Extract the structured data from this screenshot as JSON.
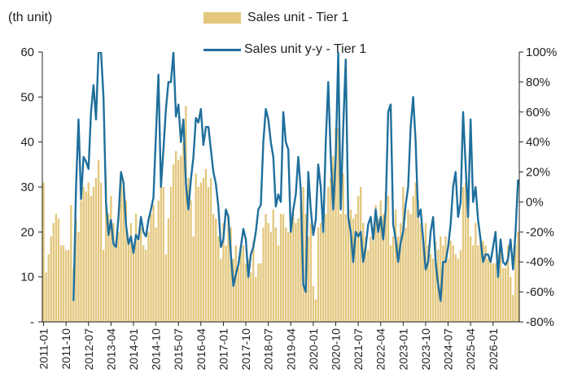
{
  "colors": {
    "bar": "#e3c77d",
    "line": "#1f6f9c",
    "axis": "#222222"
  },
  "chart_data": {
    "type": "bar+line",
    "left_axis_unit": "(th unit)",
    "y_left": {
      "min": 0,
      "max": 60,
      "ticks": [
        0,
        10,
        20,
        30,
        40,
        50,
        60
      ],
      "tick_labels": [
        "-",
        "10",
        "20",
        "30",
        "40",
        "50",
        "60"
      ]
    },
    "y_right": {
      "min": -80,
      "max": 100,
      "ticks": [
        -80,
        -60,
        -40,
        -20,
        0,
        20,
        40,
        60,
        80,
        100
      ],
      "tick_labels": [
        "-80%",
        "-60%",
        "-40%",
        "-20%",
        "0%",
        "20%",
        "40%",
        "60%",
        "80%",
        "100%"
      ]
    },
    "x_tick_labels": [
      "2011-01",
      "2011-10",
      "2012-07",
      "2013-04",
      "2014-01",
      "2014-10",
      "2015-07",
      "2016-04",
      "2017-01",
      "2017-10",
      "2018-07",
      "2019-04",
      "2020-01",
      "2020-10",
      "2021-07",
      "2022-04",
      "2023-01",
      "2023-10",
      "2024-07",
      "2025-04",
      "2026-01"
    ],
    "x_start": "2011-01",
    "grid": false,
    "legend_position": "top-center",
    "series": [
      {
        "name": "Sales unit - Tier 1",
        "type": "bar",
        "axis": "left",
        "values": [
          31,
          11,
          15,
          19,
          22,
          24,
          23,
          17,
          17,
          16,
          16,
          26,
          12,
          23,
          20,
          27,
          30,
          29,
          31,
          28,
          30,
          32,
          36,
          31,
          16,
          32,
          24,
          28,
          22,
          18,
          20,
          33,
          30,
          27,
          18,
          22,
          16,
          24,
          18,
          21,
          17,
          16,
          20,
          24,
          26,
          21,
          27,
          31,
          30,
          15,
          23,
          30,
          35,
          38,
          36,
          37,
          40,
          48,
          32,
          27,
          19,
          33,
          30,
          31,
          32,
          34,
          30,
          32,
          24,
          23,
          19,
          14,
          22,
          17,
          24,
          21,
          14,
          17,
          12,
          16,
          17,
          13,
          14,
          11,
          18,
          10,
          13,
          13,
          21,
          24,
          22,
          20,
          25,
          21,
          17,
          24,
          24,
          21,
          20,
          22,
          24,
          22,
          23,
          26,
          30,
          24,
          19,
          22,
          8,
          5,
          21,
          22,
          20,
          24,
          30,
          32,
          37,
          43,
          43,
          24,
          33,
          24,
          27,
          25,
          23,
          24,
          28,
          30,
          22,
          19,
          16,
          19,
          18,
          26,
          23,
          27,
          24,
          29,
          28,
          17,
          19,
          25,
          19,
          22,
          30,
          21,
          25,
          24,
          28,
          31,
          27,
          22,
          19,
          22,
          17,
          15,
          14,
          18,
          16,
          19,
          17,
          19,
          14,
          18,
          17,
          15,
          14,
          16,
          30,
          31,
          28,
          19,
          17,
          22,
          17,
          18,
          18,
          17,
          14,
          14,
          13,
          13,
          15,
          16,
          12,
          12,
          17,
          10,
          6,
          17,
          20
        ]
      },
      {
        "name": "Sales unit y-y - Tier 1",
        "type": "line",
        "axis": "right",
        "values": [
          null,
          null,
          null,
          null,
          null,
          null,
          null,
          null,
          null,
          null,
          null,
          null,
          -66,
          10,
          55,
          2,
          30,
          27,
          22,
          60,
          78,
          55,
          100,
          100,
          70,
          0,
          -22,
          -12,
          -28,
          -30,
          -10,
          20,
          13,
          -15,
          -28,
          -23,
          -34,
          -22,
          -25,
          -10,
          -20,
          -23,
          -12,
          -5,
          3,
          45,
          85,
          10,
          35,
          62,
          80,
          80,
          100,
          57,
          65,
          40,
          55,
          12,
          -5,
          15,
          30,
          56,
          53,
          62,
          38,
          50,
          50,
          35,
          20,
          12,
          -3,
          -30,
          -25,
          -5,
          -10,
          -35,
          -56,
          -48,
          -42,
          -30,
          -18,
          -25,
          -50,
          -35,
          -30,
          -20,
          -5,
          -2,
          40,
          62,
          55,
          40,
          30,
          -3,
          5,
          0,
          60,
          40,
          35,
          -20,
          -5,
          5,
          30,
          8,
          -55,
          -60,
          20,
          -5,
          -22,
          -12,
          25,
          10,
          -20,
          40,
          80,
          30,
          -5,
          30,
          100,
          -5,
          50,
          95,
          -10,
          -20,
          -40,
          -20,
          -23,
          -20,
          -40,
          -30,
          -15,
          -10,
          -25,
          -5,
          -20,
          -10,
          -25,
          -5,
          60,
          65,
          -15,
          -25,
          -40,
          -27,
          -20,
          -2,
          10,
          50,
          70,
          40,
          -10,
          -5,
          -25,
          -45,
          -40,
          -20,
          -10,
          -40,
          -55,
          -66,
          -40,
          -40,
          -30,
          -15,
          10,
          20,
          -10,
          0,
          60,
          25,
          -10,
          55,
          0,
          10,
          -12,
          -25,
          -40,
          -35,
          -35,
          -40,
          -30,
          -20,
          -50,
          -25,
          -40,
          -42,
          -38,
          -25,
          -45,
          -20,
          15
        ]
      }
    ]
  }
}
